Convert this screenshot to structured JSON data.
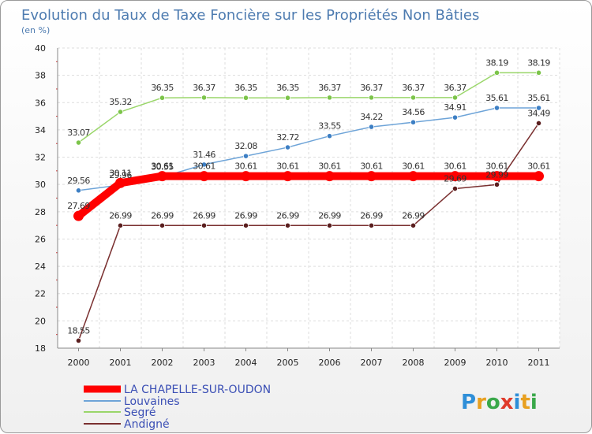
{
  "chart_data": {
    "type": "line",
    "title": "Evolution du Taux de Taxe Foncière sur les Propriétés Non Bâties",
    "ylabel": "(en %)",
    "xlabel": "",
    "x": [
      "2000",
      "2001",
      "2002",
      "2003",
      "2004",
      "2005",
      "2006",
      "2007",
      "2008",
      "2009",
      "2010",
      "2011"
    ],
    "ylim": [
      18,
      40
    ],
    "yticks": [
      18,
      20,
      22,
      24,
      26,
      28,
      30,
      32,
      34,
      36,
      38,
      40
    ],
    "grid": true,
    "legend_position": "bottom-left",
    "series": [
      {
        "name": "LA CHAPELLE-SUR-OUDON",
        "color": "#ff0000",
        "emphasis": true,
        "values": [
          27.69,
          30.11,
          30.61,
          30.61,
          30.61,
          30.61,
          30.61,
          30.61,
          30.61,
          30.61,
          30.61,
          30.61
        ],
        "labels": [
          "27.69",
          "30.11",
          "30.61",
          "30.61",
          "30.61",
          "30.61",
          "30.61",
          "30.61",
          "30.61",
          "30.61",
          "30.61",
          "30.61"
        ]
      },
      {
        "name": "Louvaines",
        "color": "#6ea4d8",
        "marker": "#3d7fc4",
        "values": [
          29.56,
          29.96,
          30.55,
          31.46,
          32.08,
          32.72,
          33.55,
          34.22,
          34.56,
          34.91,
          35.61,
          35.61
        ],
        "labels": [
          "29.56",
          "29.96",
          "30.55",
          "31.46",
          "32.08",
          "32.72",
          "33.55",
          "34.22",
          "34.56",
          "34.91",
          "35.61",
          "35.61"
        ]
      },
      {
        "name": "Segré",
        "color": "#9ad66a",
        "marker": "#7cc44a",
        "values": [
          33.07,
          35.32,
          36.35,
          36.37,
          36.35,
          36.35,
          36.37,
          36.37,
          36.37,
          36.37,
          38.19,
          38.19
        ],
        "labels": [
          "33.07",
          "35.32",
          "36.35",
          "36.37",
          "36.35",
          "36.35",
          "36.37",
          "36.37",
          "36.37",
          "36.37",
          "38.19",
          "38.19"
        ]
      },
      {
        "name": "Andigné",
        "color": "#7a3030",
        "marker": "#5a1e1e",
        "values": [
          18.55,
          26.99,
          26.99,
          26.99,
          26.99,
          26.99,
          26.99,
          26.99,
          26.99,
          29.69,
          29.99,
          34.49
        ],
        "labels": [
          "18.55",
          "26.99",
          "26.99",
          "26.99",
          "26.99",
          "26.99",
          "26.99",
          "26.99",
          "26.99",
          "29.69",
          "29.99",
          "34.49"
        ]
      }
    ]
  },
  "brand": {
    "parts": [
      {
        "text": "P",
        "color": "#2f8fd8"
      },
      {
        "text": "r",
        "color": "#e8a020"
      },
      {
        "text": "o",
        "color": "#3aa84a"
      },
      {
        "text": "x",
        "color": "#e03a2a"
      },
      {
        "text": "i",
        "color": "#2f8fd8"
      },
      {
        "text": "t",
        "color": "#e8a020"
      },
      {
        "text": "i",
        "color": "#3aa84a"
      }
    ]
  }
}
